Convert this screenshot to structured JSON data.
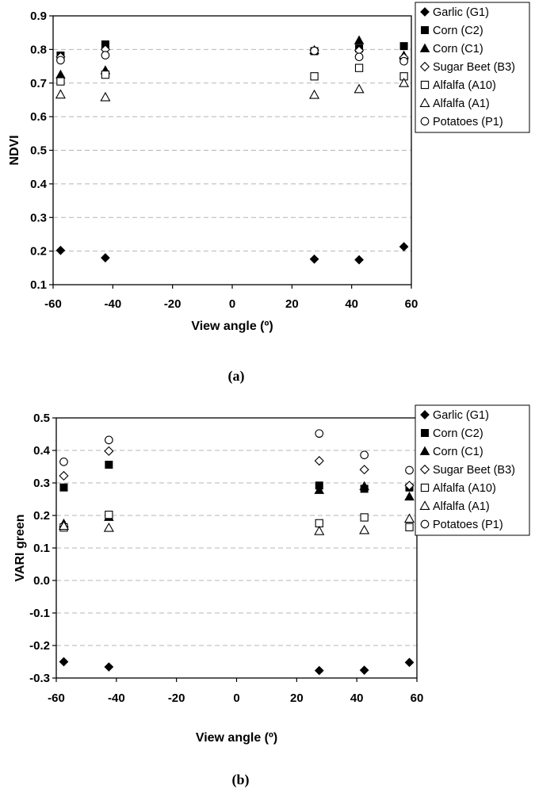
{
  "chart_data": [
    {
      "type": "scatter",
      "caption": "(a)",
      "xlabel": "View angle (º)",
      "ylabel": "NDVI",
      "xlim": [
        -60,
        60
      ],
      "ylim": [
        0.1,
        0.9
      ],
      "xticks": [
        -60,
        -40,
        -20,
        0,
        20,
        40,
        60
      ],
      "yticks": [
        0.1,
        0.2,
        0.3,
        0.4,
        0.5,
        0.6,
        0.7,
        0.8,
        0.9
      ],
      "ytick_decimals": 1,
      "grid": "horizontal-dashed",
      "legend_position": "right",
      "x": [
        -57.5,
        -42.5,
        27.5,
        42.5,
        57.5
      ],
      "series": [
        {
          "name": "Garlic (G1)",
          "marker": "diamond-filled",
          "values": [
            0.202,
            0.18,
            0.176,
            0.174,
            0.213
          ]
        },
        {
          "name": "Corn (C2)",
          "marker": "square-filled",
          "values": [
            0.782,
            0.815,
            0.795,
            0.803,
            0.81
          ]
        },
        {
          "name": "Corn (C1)",
          "marker": "triangle-filled",
          "values": [
            0.725,
            0.738,
            0.798,
            0.827,
            0.782
          ]
        },
        {
          "name": "Sugar Beet (B3)",
          "marker": "diamond-open",
          "values": [
            0.778,
            0.8,
            0.797,
            0.797,
            0.776
          ]
        },
        {
          "name": "Alfalfa (A10)",
          "marker": "square-open",
          "values": [
            0.705,
            0.725,
            0.72,
            0.745,
            0.72
          ]
        },
        {
          "name": "Alfalfa (A1)",
          "marker": "triangle-open",
          "values": [
            0.666,
            0.658,
            0.665,
            0.682,
            0.7
          ]
        },
        {
          "name": "Potatoes (P1)",
          "marker": "circle-open",
          "values": [
            0.768,
            0.783,
            0.796,
            0.778,
            0.765
          ]
        }
      ]
    },
    {
      "type": "scatter",
      "caption": "(b)",
      "xlabel": "View angle (º)",
      "ylabel": "VARI green",
      "xlim": [
        -60,
        60
      ],
      "ylim": [
        -0.3,
        0.5
      ],
      "xticks": [
        -60,
        -40,
        -20,
        0,
        20,
        40,
        60
      ],
      "yticks": [
        -0.3,
        -0.2,
        -0.1,
        0.0,
        0.1,
        0.2,
        0.3,
        0.4,
        0.5
      ],
      "ytick_decimals": 1,
      "grid": "horizontal-dashed",
      "legend_position": "right",
      "x": [
        -57.5,
        -42.5,
        27.5,
        42.5,
        57.5
      ],
      "series": [
        {
          "name": "Garlic (G1)",
          "marker": "diamond-filled",
          "values": [
            -0.25,
            -0.266,
            -0.277,
            -0.276,
            -0.252
          ]
        },
        {
          "name": "Corn (C2)",
          "marker": "square-filled",
          "values": [
            0.286,
            0.356,
            0.292,
            0.282,
            0.286
          ]
        },
        {
          "name": "Corn (C1)",
          "marker": "triangle-filled",
          "values": [
            0.175,
            0.195,
            0.278,
            0.29,
            0.258
          ]
        },
        {
          "name": "Sugar Beet (B3)",
          "marker": "diamond-open",
          "values": [
            0.322,
            0.398,
            0.368,
            0.341,
            0.292
          ]
        },
        {
          "name": "Alfalfa (A10)",
          "marker": "square-open",
          "values": [
            0.163,
            0.202,
            0.176,
            0.194,
            0.164
          ]
        },
        {
          "name": "Alfalfa (A1)",
          "marker": "triangle-open",
          "values": [
            0.168,
            0.162,
            0.152,
            0.155,
            0.19
          ]
        },
        {
          "name": "Potatoes (P1)",
          "marker": "circle-open",
          "values": [
            0.365,
            0.432,
            0.452,
            0.386,
            0.339
          ]
        }
      ]
    }
  ]
}
